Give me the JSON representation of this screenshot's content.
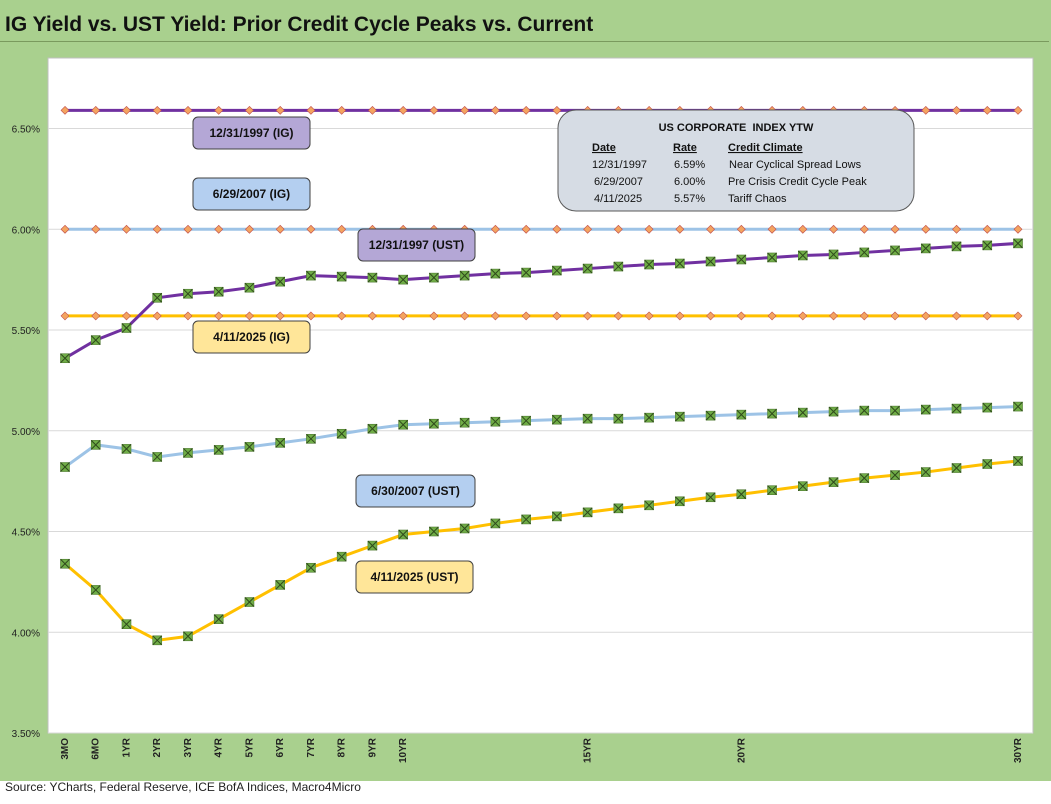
{
  "title": "IG Yield vs. UST Yield: Prior Credit Cycle Peaks vs. Current",
  "source": "Source: YCharts, Federal Reserve, ICE BofA Indices, Macro4Micro",
  "colors": {
    "frame": "#a9d08e",
    "ig_1997": "#7030a0",
    "ig_2007": "#9dc3e6",
    "ig_2025": "#ffc000",
    "diamond": "#f4a460",
    "x_marker": "#70ad47",
    "badge_1997": "#b4a7d6",
    "badge_2007": "#b4cff0",
    "badge_2025": "#ffe699"
  },
  "chart_data": {
    "type": "line",
    "title": "IG Yield vs. UST Yield: Prior Credit Cycle Peaks vs. Current",
    "ylim": [
      3.5,
      6.85
    ],
    "y_ticks": [
      "3.50%",
      "4.00%",
      "4.50%",
      "5.00%",
      "5.50%",
      "6.00%",
      "6.50%"
    ],
    "y_tick_values": [
      3.5,
      4.0,
      4.5,
      5.0,
      5.5,
      6.0,
      6.5
    ],
    "x_points": 32,
    "x_tick_labels": [
      "3MO",
      "6MO",
      "1YR",
      "2YR",
      "3YR",
      "4YR",
      "5YR",
      "6YR",
      "7YR",
      "8YR",
      "9YR",
      "10YR",
      "",
      "",
      "",
      "",
      "",
      "15YR",
      "",
      "",
      "",
      "",
      "20YR",
      "",
      "",
      "",
      "",
      "",
      "",
      "",
      "",
      "30YR"
    ],
    "grid": true,
    "series": [
      {
        "name": "12/31/1997 (IG)",
        "kind": "ig",
        "color": "#7030a0",
        "values": [
          6.59,
          6.59,
          6.59,
          6.59,
          6.59,
          6.59,
          6.59,
          6.59,
          6.59,
          6.59,
          6.59,
          6.59,
          6.59,
          6.59,
          6.59,
          6.59,
          6.59,
          6.59,
          6.59,
          6.59,
          6.59,
          6.59,
          6.59,
          6.59,
          6.59,
          6.59,
          6.59,
          6.59,
          6.59,
          6.59,
          6.59,
          6.59
        ]
      },
      {
        "name": "6/29/2007 (IG)",
        "kind": "ig",
        "color": "#9dc3e6",
        "values": [
          6.0,
          6.0,
          6.0,
          6.0,
          6.0,
          6.0,
          6.0,
          6.0,
          6.0,
          6.0,
          6.0,
          6.0,
          6.0,
          6.0,
          6.0,
          6.0,
          6.0,
          6.0,
          6.0,
          6.0,
          6.0,
          6.0,
          6.0,
          6.0,
          6.0,
          6.0,
          6.0,
          6.0,
          6.0,
          6.0,
          6.0,
          6.0
        ]
      },
      {
        "name": "4/11/2025 (IG)",
        "kind": "ig",
        "color": "#ffc000",
        "values": [
          5.57,
          5.57,
          5.57,
          5.57,
          5.57,
          5.57,
          5.57,
          5.57,
          5.57,
          5.57,
          5.57,
          5.57,
          5.57,
          5.57,
          5.57,
          5.57,
          5.57,
          5.57,
          5.57,
          5.57,
          5.57,
          5.57,
          5.57,
          5.57,
          5.57,
          5.57,
          5.57,
          5.57,
          5.57,
          5.57,
          5.57,
          5.57
        ]
      },
      {
        "name": "12/31/1997 (UST)",
        "kind": "ust",
        "color": "#7030a0",
        "values": [
          5.36,
          5.45,
          5.51,
          5.66,
          5.68,
          5.69,
          5.71,
          5.74,
          5.77,
          5.765,
          5.76,
          5.75,
          5.76,
          5.77,
          5.78,
          5.785,
          5.795,
          5.805,
          5.815,
          5.825,
          5.83,
          5.84,
          5.85,
          5.86,
          5.87,
          5.875,
          5.885,
          5.895,
          5.905,
          5.915,
          5.92,
          5.93
        ]
      },
      {
        "name": "6/30/2007 (UST)",
        "kind": "ust",
        "color": "#9dc3e6",
        "values": [
          4.82,
          4.93,
          4.91,
          4.87,
          4.89,
          4.905,
          4.92,
          4.94,
          4.96,
          4.985,
          5.01,
          5.03,
          5.035,
          5.04,
          5.045,
          5.05,
          5.055,
          5.06,
          5.06,
          5.065,
          5.07,
          5.075,
          5.08,
          5.085,
          5.09,
          5.095,
          5.1,
          5.1,
          5.105,
          5.11,
          5.115,
          5.12
        ]
      },
      {
        "name": "4/11/2025 (UST)",
        "kind": "ust",
        "color": "#ffc000",
        "values": [
          4.34,
          4.21,
          4.04,
          3.96,
          3.98,
          4.065,
          4.15,
          4.235,
          4.32,
          4.375,
          4.43,
          4.485,
          4.5,
          4.515,
          4.54,
          4.56,
          4.575,
          4.595,
          4.615,
          4.63,
          4.65,
          4.67,
          4.685,
          4.705,
          4.725,
          4.745,
          4.765,
          4.78,
          4.795,
          4.815,
          4.835,
          4.85
        ]
      }
    ]
  },
  "badges": [
    {
      "text": "12/31/1997 (IG)",
      "color": "#b4a7d6"
    },
    {
      "text": "6/29/2007 (IG)",
      "color": "#b4cff0"
    },
    {
      "text": "12/31/1997 (UST)",
      "color": "#b4a7d6"
    },
    {
      "text": "4/11/2025 (IG)",
      "color": "#ffe699"
    },
    {
      "text": "6/30/2007 (UST)",
      "color": "#b4cff0"
    },
    {
      "text": "4/11/2025 (UST)",
      "color": "#ffe699"
    }
  ],
  "ytw_box": {
    "title": "US CORPORATE  INDEX YTW",
    "headers": [
      "Date",
      "Rate",
      "Credit Climate"
    ],
    "rows": [
      [
        "12/31/1997",
        "6.59%",
        " Near Cyclical Spread Lows"
      ],
      [
        "6/29/2007",
        "6.00%",
        "Pre Crisis Credit Cycle Peak"
      ],
      [
        "4/11/2025",
        "5.57%",
        "Tariff Chaos"
      ]
    ]
  }
}
